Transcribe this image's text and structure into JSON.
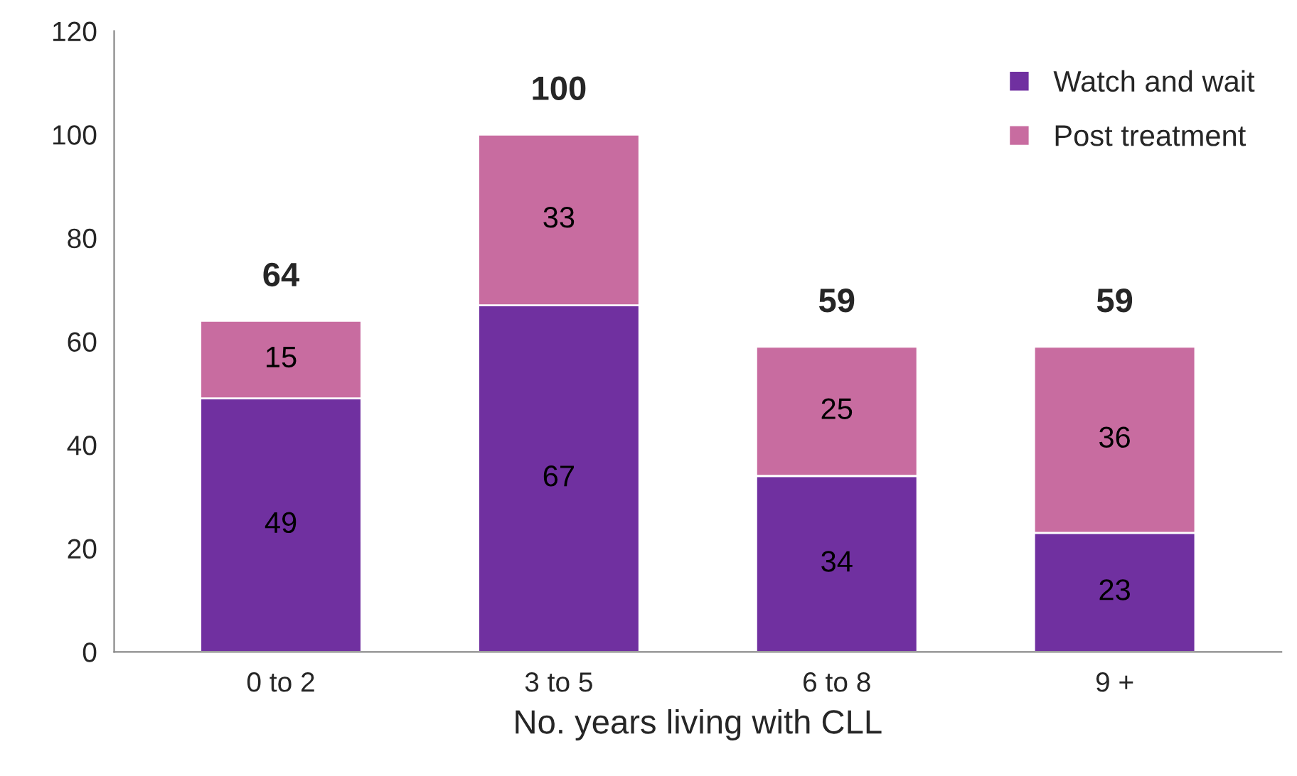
{
  "chart_data": {
    "type": "bar",
    "stacked": true,
    "xlabel": "No. years living with CLL",
    "categories": [
      "0 to 2",
      "3 to 5",
      "6 to 8",
      "9 +"
    ],
    "series": [
      {
        "name": "Watch and wait",
        "color": "#7030a0",
        "values": [
          49,
          67,
          34,
          23
        ]
      },
      {
        "name": "Post treatment",
        "color": "#c86ca0",
        "values": [
          15,
          33,
          25,
          36
        ]
      }
    ],
    "data_labels": true,
    "totals": [
      "64",
      "100",
      "59",
      "59"
    ],
    "ylim": [
      0,
      120
    ],
    "yticks": [
      0,
      20,
      40,
      60,
      80,
      100,
      120
    ],
    "grid": false,
    "legend": "top right"
  }
}
